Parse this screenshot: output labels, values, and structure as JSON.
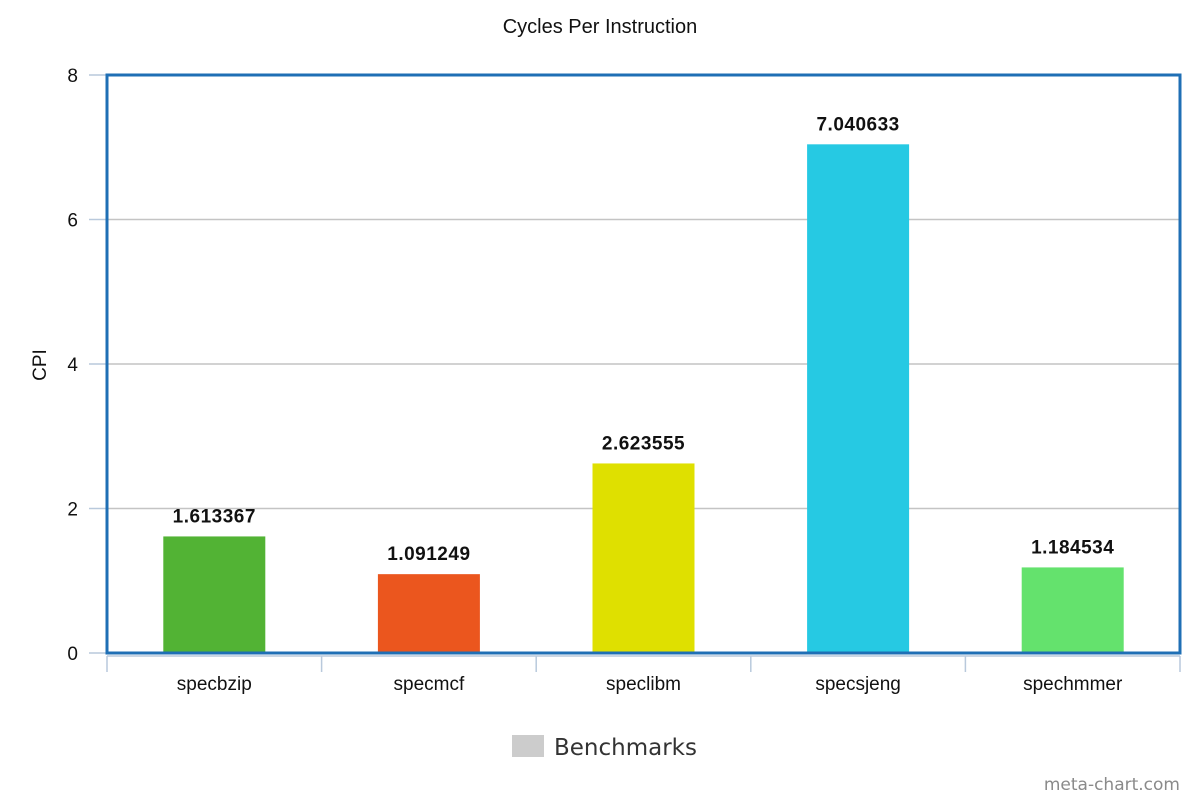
{
  "chart_data": {
    "type": "bar",
    "title": "Cycles Per Instruction",
    "xlabel": "",
    "ylabel": "CPI",
    "categories": [
      "specbzip",
      "specmcf",
      "speclibm",
      "specsjeng",
      "spechmmer"
    ],
    "values": [
      1.613367,
      1.091249,
      2.623555,
      7.040633,
      1.184534
    ],
    "value_labels": [
      "1.613367",
      "1.091249",
      "2.623555",
      "7.040633",
      "1.184534"
    ],
    "bar_colors": [
      "#52b334",
      "#eb561e",
      "#dfe000",
      "#26c9e3",
      "#64e26d"
    ],
    "ylim": [
      0,
      8
    ],
    "yticks": [
      0,
      2,
      4,
      6,
      8
    ],
    "grid": true,
    "legend": {
      "position": "bottom-center",
      "entries": [
        {
          "name": "Benchmarks",
          "color": "#cccccc"
        }
      ]
    },
    "frame_color": "#1f6fb5"
  },
  "watermark": "meta-chart.com"
}
